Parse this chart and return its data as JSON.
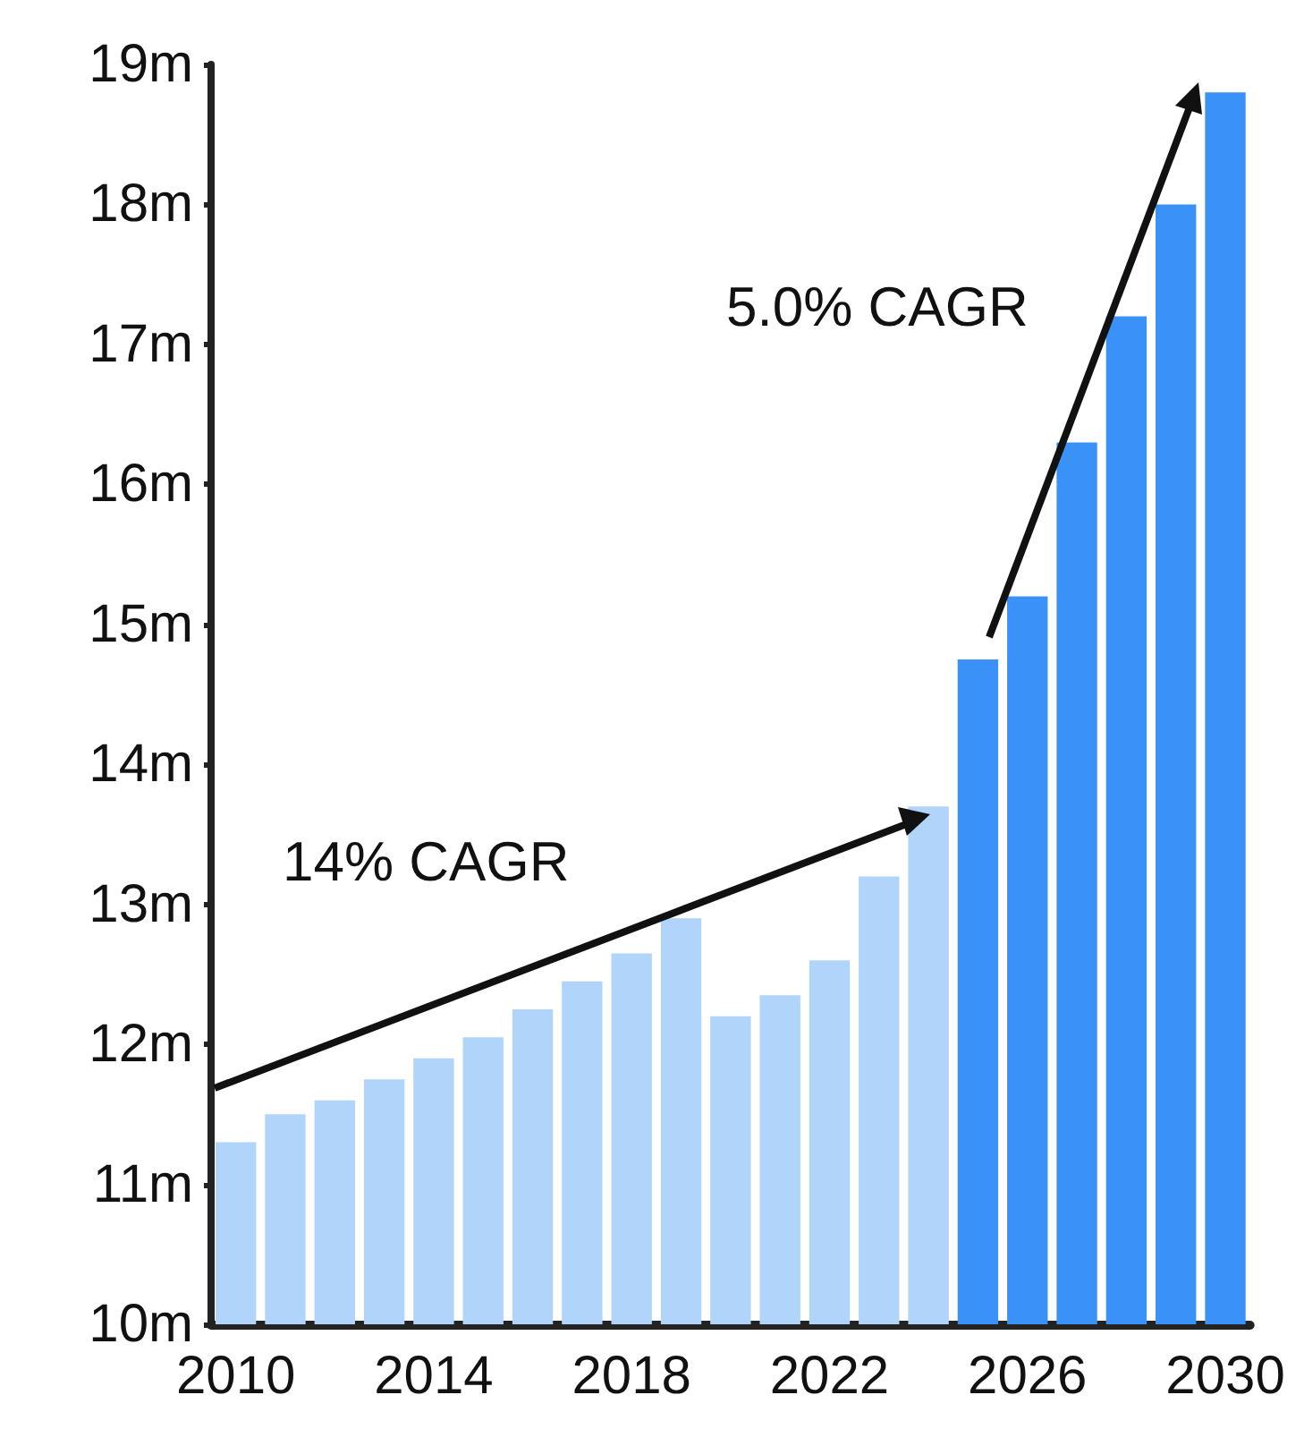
{
  "chart_data": {
    "type": "bar",
    "categories": [
      "2010",
      null,
      null,
      null,
      "2014",
      null,
      null,
      null,
      "2018",
      null,
      null,
      null,
      "2022",
      null,
      null,
      null,
      "2026",
      null,
      null,
      null,
      "2030"
    ],
    "values": [
      11.3,
      11.5,
      11.6,
      11.75,
      11.9,
      12.05,
      12.25,
      12.45,
      12.65,
      12.9,
      12.2,
      12.35,
      12.6,
      13.2,
      13.7,
      14.75,
      15.2,
      16.3,
      17.2,
      18.0,
      18.8
    ],
    "colors": [
      "#b0d4fa",
      "#b0d4fa",
      "#b0d4fa",
      "#b0d4fa",
      "#b0d4fa",
      "#b0d4fa",
      "#b0d4fa",
      "#b0d4fa",
      "#b0d4fa",
      "#b0d4fa",
      "#b0d4fa",
      "#b0d4fa",
      "#b0d4fa",
      "#b0d4fa",
      "#b0d4fa",
      "#3a92f8",
      "#3a92f8",
      "#3a92f8",
      "#3a92f8",
      "#3a92f8",
      "#3a92f8"
    ],
    "ylim": [
      10,
      19
    ],
    "yticks": [
      {
        "value": 10,
        "label": "10m"
      },
      {
        "value": 11,
        "label": "11m"
      },
      {
        "value": 12,
        "label": "12m"
      },
      {
        "value": 13,
        "label": "13m"
      },
      {
        "value": 14,
        "label": "14m"
      },
      {
        "value": 15,
        "label": "15m"
      },
      {
        "value": 16,
        "label": "16m"
      },
      {
        "value": 17,
        "label": "17m"
      },
      {
        "value": 18,
        "label": "18m"
      },
      {
        "value": 19,
        "label": "19m"
      }
    ],
    "grid": false,
    "annotations": [
      "14% CAGR",
      "5.0% CAGR"
    ]
  }
}
